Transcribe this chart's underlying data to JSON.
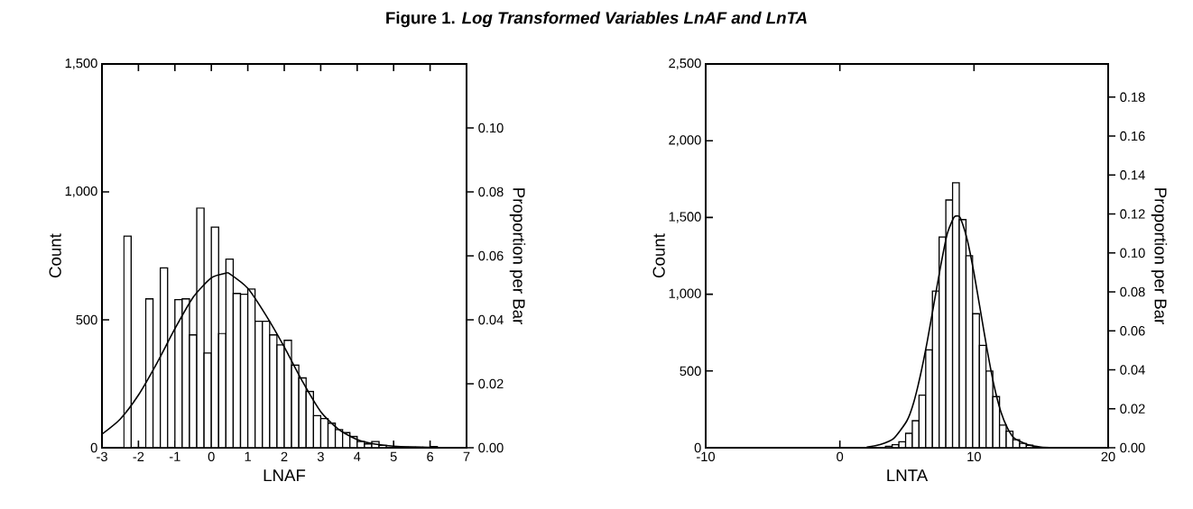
{
  "chart_data": [
    {
      "type": "histogram",
      "title": "Figure 1. *Log Transformed Variables LnAF and LnTA*",
      "xlabel": "LNAF",
      "ylabel": "Count",
      "y2label": "Proportion per Bar",
      "color": "#ffffff",
      "bins": [
        -2.4,
        -2.2,
        -2.0,
        -1.8,
        -1.6,
        -1.4,
        -1.2,
        -1.0,
        -0.8,
        -0.6,
        -0.4,
        -0.2,
        0.0,
        0.2,
        0.4,
        0.6,
        0.8,
        1.0,
        1.2,
        1.4,
        1.6,
        1.8,
        2.0,
        2.2,
        2.4,
        2.6,
        2.8,
        3.0,
        3.2,
        3.4,
        3.6,
        3.8,
        4.0,
        4.2,
        4.4,
        4.6,
        4.8,
        5.0,
        5.2,
        5.4,
        5.6,
        5.8,
        6.0,
        6.2
      ],
      "values": [
        827,
        null,
        null,
        582,
        null,
        703,
        null,
        579,
        582,
        441,
        937,
        370,
        862,
        447,
        737,
        603,
        600,
        620,
        494,
        494,
        441,
        402,
        420,
        323,
        273,
        220,
        126,
        114,
        96,
        71,
        59,
        44,
        24,
        15,
        24,
        9,
        null,
        3,
        2,
        2,
        2,
        2,
        5
      ],
      "series": [
        {
          "type": "line",
          "color": "#000000",
          "x": [
            -3,
            -2.5,
            -2,
            -1.5,
            -1,
            -0.5,
            0,
            0.4,
            0.5,
            1,
            1.5,
            2,
            2.5,
            3,
            3.5,
            4,
            4.5,
            5,
            6,
            7
          ],
          "values": [
            53,
            112,
            206,
            329,
            465,
            588,
            664,
            682,
            680,
            623,
            517,
            394,
            259,
            141,
            71,
            32,
            14,
            6,
            1,
            0
          ]
        }
      ],
      "xlim": [
        -3,
        7
      ],
      "xticks": [
        -3,
        -2,
        -1,
        0,
        1,
        2,
        3,
        4,
        5,
        6,
        7
      ],
      "ylim": [
        0,
        1500
      ],
      "yticks": [
        0,
        500,
        {
          "value": 1000,
          "label": "1,000"
        },
        {
          "value": 1500,
          "label": "1,500"
        }
      ],
      "y2lim": [
        0,
        0.12
      ],
      "y2ticks": [
        {
          "value": 0,
          "label": "0.00"
        },
        {
          "value": 0.02,
          "label": "0.02"
        },
        {
          "value": 0.04,
          "label": "0.04"
        },
        {
          "value": 0.06,
          "label": "0.06"
        },
        {
          "value": 0.08,
          "label": "0.08"
        },
        {
          "value": 0.1,
          "label": "0.10"
        }
      ]
    },
    {
      "type": "histogram",
      "xlabel": "LNTA",
      "ylabel": "Count",
      "y2label": "Proportion per Bar",
      "color": "#ffffff",
      "bins": [
        3.4,
        3.9,
        4.4,
        4.9,
        5.4,
        5.9,
        6.4,
        6.9,
        7.4,
        7.9,
        8.4,
        8.9,
        9.4,
        9.9,
        10.4,
        10.9,
        11.4,
        11.9,
        12.4,
        12.9,
        13.4,
        13.9,
        14.4,
        14.9
      ],
      "values": [
        10,
        20,
        39,
        94,
        176,
        343,
        637,
        1020,
        1373,
        1614,
        1726,
        1486,
        1251,
        873,
        667,
        500,
        333,
        147,
        108,
        53,
        29,
        16,
        null
      ],
      "series": [
        {
          "type": "line",
          "color": "#000000",
          "x": [
            2,
            3,
            4,
            5,
            5.5,
            6,
            6.5,
            7,
            7.5,
            8,
            8.5,
            8.8,
            9,
            9.5,
            10,
            10.5,
            11,
            11.5,
            12,
            12.5,
            13,
            14,
            15,
            16
          ],
          "values": [
            4,
            20,
            59,
            176,
            294,
            471,
            686,
            931,
            1177,
            1392,
            1500,
            1510,
            1494,
            1353,
            1137,
            882,
            627,
            402,
            235,
            127,
            63,
            20,
            4,
            1
          ]
        }
      ],
      "xlim": [
        -10,
        20
      ],
      "xticks": [
        -10,
        0,
        10,
        20
      ],
      "ylim": [
        0,
        2500
      ],
      "yticks": [
        0,
        500,
        {
          "value": 1000,
          "label": "1,000"
        },
        {
          "value": 1500,
          "label": "1,500"
        },
        {
          "value": 2000,
          "label": "2,000"
        },
        {
          "value": 2500,
          "label": "2,500"
        }
      ],
      "y2lim": [
        0,
        0.197
      ],
      "y2ticks": [
        {
          "value": 0,
          "label": "0.00"
        },
        {
          "value": 0.02,
          "label": "0.02"
        },
        {
          "value": 0.04,
          "label": "0.04"
        },
        {
          "value": 0.06,
          "label": "0.06"
        },
        {
          "value": 0.08,
          "label": "0.08"
        },
        {
          "value": 0.1,
          "label": "0.10"
        },
        {
          "value": 0.12,
          "label": "0.12"
        },
        {
          "value": 0.14,
          "label": "0.14"
        },
        {
          "value": 0.16,
          "label": "0.16"
        },
        {
          "value": 0.18,
          "label": "0.18"
        }
      ]
    }
  ]
}
